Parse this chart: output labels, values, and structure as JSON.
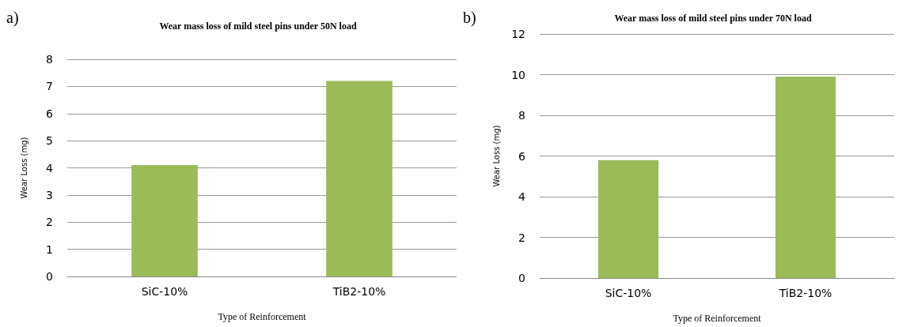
{
  "chart_data": [
    {
      "type": "bar",
      "title": "Wear mass loss of mild steel pins under 50N load",
      "xlabel": "Type of Reinforcement",
      "ylabel": "Wear Loss (mg)",
      "categories": [
        "SiC-10%",
        "TiB2-10%"
      ],
      "values": [
        4.1,
        7.2
      ],
      "color": "#9bbb59",
      "ylim": [
        0,
        8
      ],
      "yticks": [
        0,
        1,
        2,
        3,
        4,
        5,
        6,
        7,
        8
      ],
      "grid": "y",
      "annotations": [
        "a)"
      ]
    },
    {
      "type": "bar",
      "title": "Wear mass loss of mild steel pins under 70N load",
      "xlabel": "Type of Reinforcement",
      "ylabel": "Wear Loss (mg)",
      "categories": [
        "SiC-10%",
        "TiB2-10%"
      ],
      "values": [
        5.8,
        9.9
      ],
      "color": "#9bbb59",
      "ylim": [
        0,
        12
      ],
      "yticks": [
        0,
        2,
        4,
        6,
        8,
        10,
        12
      ],
      "grid": "y",
      "annotations": [
        "b)"
      ]
    }
  ]
}
